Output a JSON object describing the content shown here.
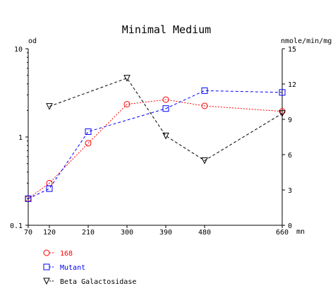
{
  "chart_data": {
    "type": "line",
    "title": "Minimal Medium",
    "left_axis_unit": "od",
    "right_axis_unit": "nmole/min/mg",
    "x_unit": "mn",
    "x_ticks": [
      70,
      120,
      210,
      300,
      390,
      480,
      660
    ],
    "xlim": [
      70,
      660
    ],
    "left_ylim": [
      0.1,
      10
    ],
    "left_scale": "log",
    "left_ticks": [
      "0.1",
      "1",
      "10"
    ],
    "right_ylim": [
      0,
      15
    ],
    "right_ticks": [
      "0",
      "3",
      "6",
      "9",
      "12",
      "15"
    ],
    "grid": false,
    "legend_position": "bottom-left",
    "series": [
      {
        "name": "168",
        "axis": "left",
        "color": "#ff0000",
        "marker": "circle",
        "line": "dotted",
        "x": [
          70,
          120,
          210,
          300,
          390,
          480,
          660
        ],
        "values": [
          0.2,
          0.3,
          0.85,
          2.35,
          2.65,
          2.25,
          1.95
        ]
      },
      {
        "name": "Mutant",
        "axis": "left",
        "color": "#0000ff",
        "marker": "square",
        "line": "dashed",
        "x": [
          70,
          120,
          210,
          390,
          480,
          660
        ],
        "values": [
          0.2,
          0.26,
          1.15,
          2.1,
          3.35,
          3.2
        ]
      },
      {
        "name": "Beta Galactosidase",
        "axis": "right",
        "color": "#000000",
        "marker": "triangle-down",
        "line": "dashed",
        "x": [
          120,
          300,
          390,
          480,
          660
        ],
        "values": [
          10.1,
          12.5,
          7.6,
          5.5,
          9.5
        ]
      }
    ]
  }
}
